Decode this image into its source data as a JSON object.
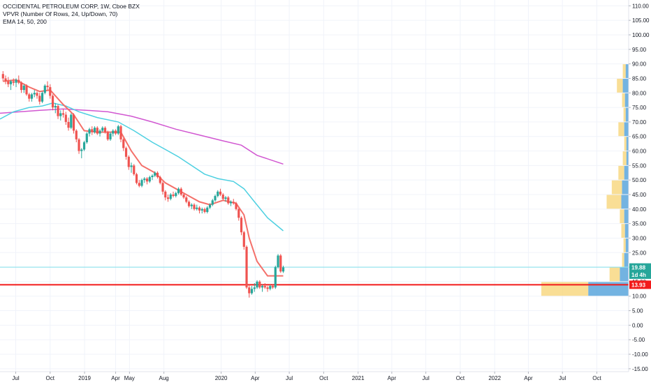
{
  "legend": {
    "symbol": "OCCIDENTAL PETROLEUM CORP, 1W, Cboe BZX",
    "vpvr": "VPVR (Number Of Rows, 24, Up/Down, 70)",
    "ema": "EMA 14, 50, 200"
  },
  "colors": {
    "up": "#26a69a",
    "down": "#ef5350",
    "ema14": "#f4706a",
    "ema50": "#4dd0e1",
    "ema200": "#d157d1",
    "hline_red": "#f21b1b",
    "hline_cyan": "#80deea",
    "vp_up": "#5aa6dc",
    "vp_down": "#f7d67a"
  },
  "chart_data": {
    "type": "candlestick",
    "ylim": [
      -16,
      112
    ],
    "yticks": [
      -15,
      -10,
      -5,
      0,
      5,
      10,
      15,
      20,
      25,
      30,
      35,
      40,
      45,
      50,
      55,
      60,
      65,
      70,
      75,
      80,
      85,
      90,
      95,
      100,
      105,
      110
    ],
    "ytick_labels": [
      "-15.00",
      "-10.00",
      "-5.00",
      "0.00",
      "5.00",
      "10.00",
      "15.00",
      "20.00",
      "25.00",
      "30.00",
      "35.00",
      "40.00",
      "45.00",
      "50.00",
      "55.00",
      "60.00",
      "65.00",
      "70.00",
      "75.00",
      "80.00",
      "85.00",
      "90.00",
      "95.00",
      "100.00",
      "105.00",
      "110.00"
    ],
    "xticks": [
      "Jul",
      "Oct",
      "2019",
      "Apr",
      "May",
      "Aug",
      "2020",
      "Apr",
      "Jul",
      "Oct",
      "2021",
      "Apr",
      "Jul",
      "Oct",
      "2022",
      "Apr",
      "Jul",
      "Oct"
    ],
    "xtick_pos": [
      "2018-07-01",
      "2018-10-01",
      "2019-01-01",
      "2019-03-25",
      "2019-05-01",
      "2019-08-01",
      "2020-01-01",
      "2020-04-01",
      "2020-07-01",
      "2020-10-01",
      "2021-01-01",
      "2021-04-01",
      "2021-07-01",
      "2021-10-01",
      "2022-01-01",
      "2022-04-01",
      "2022-07-01",
      "2022-10-01"
    ],
    "x_range": [
      "2018-05-20",
      "2022-12-25"
    ],
    "price_tags": [
      {
        "value": 19.88,
        "label": "19.88",
        "color": "#26a69a"
      },
      {
        "value": 17.4,
        "label": "1d 4h",
        "color": "#26a69a"
      },
      {
        "value": 13.93,
        "label": "13.93",
        "color": "#f21b1b"
      }
    ],
    "hlines": [
      {
        "value": 20.0,
        "color": "cyan"
      },
      {
        "value": 13.93,
        "color": "red"
      }
    ],
    "candles": [
      [
        "2018-05-28",
        86.5,
        87.5,
        84.0,
        85.0
      ],
      [
        "2018-06-04",
        85.0,
        86.0,
        83.0,
        84.0
      ],
      [
        "2018-06-11",
        84.0,
        85.5,
        82.0,
        83.0
      ],
      [
        "2018-06-18",
        83.0,
        84.5,
        81.0,
        84.0
      ],
      [
        "2018-06-25",
        84.0,
        85.0,
        82.5,
        83.5
      ],
      [
        "2018-07-02",
        83.5,
        85.0,
        82.0,
        84.5
      ],
      [
        "2018-07-09",
        84.5,
        86.0,
        83.0,
        83.5
      ],
      [
        "2018-07-16",
        83.5,
        84.0,
        80.0,
        81.0
      ],
      [
        "2018-07-23",
        81.0,
        83.0,
        80.0,
        82.5
      ],
      [
        "2018-07-30",
        82.5,
        83.0,
        79.0,
        79.5
      ],
      [
        "2018-08-06",
        79.5,
        80.0,
        77.0,
        78.0
      ],
      [
        "2018-08-13",
        78.0,
        80.0,
        77.0,
        79.5
      ],
      [
        "2018-08-20",
        79.5,
        81.0,
        78.5,
        80.0
      ],
      [
        "2018-08-27",
        80.0,
        80.5,
        78.0,
        79.0
      ],
      [
        "2018-09-03",
        79.0,
        80.0,
        76.0,
        77.0
      ],
      [
        "2018-09-10",
        77.0,
        80.5,
        76.5,
        80.0
      ],
      [
        "2018-09-17",
        80.0,
        83.0,
        79.5,
        82.5
      ],
      [
        "2018-09-24",
        82.5,
        84.0,
        81.0,
        82.0
      ],
      [
        "2018-10-01",
        82.0,
        83.0,
        78.0,
        79.0
      ],
      [
        "2018-10-08",
        79.0,
        79.5,
        74.0,
        75.0
      ],
      [
        "2018-10-15",
        75.0,
        76.5,
        73.0,
        75.5
      ],
      [
        "2018-10-22",
        75.5,
        76.0,
        71.0,
        72.0
      ],
      [
        "2018-10-29",
        72.0,
        74.0,
        70.5,
        73.0
      ],
      [
        "2018-11-05",
        73.0,
        74.5,
        71.5,
        72.5
      ],
      [
        "2018-11-12",
        72.5,
        73.5,
        69.0,
        70.0
      ],
      [
        "2018-11-19",
        70.0,
        71.5,
        67.0,
        68.0
      ],
      [
        "2018-11-26",
        68.0,
        73.0,
        67.5,
        72.5
      ],
      [
        "2018-12-03",
        72.5,
        73.0,
        66.0,
        67.0
      ],
      [
        "2018-12-10",
        67.0,
        67.5,
        63.0,
        64.0
      ],
      [
        "2018-12-17",
        64.0,
        64.5,
        59.0,
        60.0
      ],
      [
        "2018-12-24",
        60.0,
        61.0,
        57.5,
        60.5
      ],
      [
        "2018-12-31",
        60.5,
        63.5,
        60.0,
        63.0
      ],
      [
        "2019-01-07",
        63.0,
        66.5,
        62.5,
        66.0
      ],
      [
        "2019-01-14",
        66.0,
        68.0,
        65.0,
        67.5
      ],
      [
        "2019-01-21",
        67.5,
        68.5,
        65.5,
        66.5
      ],
      [
        "2019-01-28",
        66.5,
        68.5,
        66.0,
        68.0
      ],
      [
        "2019-02-04",
        68.0,
        68.5,
        65.5,
        66.0
      ],
      [
        "2019-02-11",
        66.0,
        67.5,
        65.0,
        67.0
      ],
      [
        "2019-02-18",
        67.0,
        68.5,
        66.5,
        68.0
      ],
      [
        "2019-02-25",
        68.0,
        68.5,
        66.0,
        66.5
      ],
      [
        "2019-03-04",
        66.5,
        67.0,
        63.5,
        64.0
      ],
      [
        "2019-03-11",
        64.0,
        66.5,
        63.5,
        66.0
      ],
      [
        "2019-03-18",
        66.0,
        67.5,
        65.0,
        67.0
      ],
      [
        "2019-03-25",
        67.0,
        67.5,
        65.5,
        66.0
      ],
      [
        "2019-04-01",
        66.0,
        69.0,
        65.5,
        68.5
      ],
      [
        "2019-04-08",
        68.5,
        69.0,
        63.0,
        64.0
      ],
      [
        "2019-04-15",
        64.0,
        64.5,
        60.0,
        61.0
      ],
      [
        "2019-04-22",
        61.0,
        61.5,
        57.0,
        58.0
      ],
      [
        "2019-04-29",
        58.0,
        58.5,
        53.5,
        54.5
      ],
      [
        "2019-05-06",
        54.5,
        56.0,
        52.5,
        55.0
      ],
      [
        "2019-05-13",
        55.0,
        55.5,
        51.5,
        52.0
      ],
      [
        "2019-05-20",
        52.0,
        52.5,
        48.5,
        49.0
      ],
      [
        "2019-05-27",
        49.0,
        50.0,
        47.5,
        48.0
      ],
      [
        "2019-06-03",
        48.0,
        50.5,
        47.5,
        50.0
      ],
      [
        "2019-06-10",
        50.0,
        51.0,
        49.0,
        50.5
      ],
      [
        "2019-06-17",
        50.5,
        51.0,
        48.5,
        49.5
      ],
      [
        "2019-06-24",
        49.5,
        51.5,
        49.0,
        51.0
      ],
      [
        "2019-07-01",
        51.0,
        52.0,
        50.0,
        51.5
      ],
      [
        "2019-07-08",
        51.5,
        53.0,
        51.0,
        52.5
      ],
      [
        "2019-07-15",
        52.5,
        53.0,
        50.5,
        51.0
      ],
      [
        "2019-07-22",
        51.0,
        51.5,
        48.5,
        49.0
      ],
      [
        "2019-07-29",
        49.0,
        49.5,
        45.0,
        46.0
      ],
      [
        "2019-08-05",
        46.0,
        46.5,
        43.0,
        44.0
      ],
      [
        "2019-08-12",
        44.0,
        45.0,
        42.5,
        43.5
      ],
      [
        "2019-08-19",
        43.5,
        45.5,
        43.0,
        45.0
      ],
      [
        "2019-08-26",
        45.0,
        46.0,
        44.0,
        44.5
      ],
      [
        "2019-09-02",
        44.5,
        46.0,
        44.0,
        45.5
      ],
      [
        "2019-09-09",
        45.5,
        47.5,
        45.0,
        47.0
      ],
      [
        "2019-09-16",
        47.0,
        47.5,
        44.5,
        45.0
      ],
      [
        "2019-09-23",
        45.0,
        45.5,
        43.5,
        44.0
      ],
      [
        "2019-09-30",
        44.0,
        44.5,
        42.0,
        42.5
      ],
      [
        "2019-10-07",
        42.5,
        43.0,
        40.5,
        41.0
      ],
      [
        "2019-10-14",
        41.0,
        42.0,
        40.0,
        41.5
      ],
      [
        "2019-10-21",
        41.5,
        42.0,
        39.5,
        40.0
      ],
      [
        "2019-10-28",
        40.0,
        41.5,
        39.5,
        40.5
      ],
      [
        "2019-11-04",
        40.5,
        41.0,
        38.5,
        39.5
      ],
      [
        "2019-11-11",
        39.5,
        40.5,
        38.5,
        40.0
      ],
      [
        "2019-11-18",
        40.0,
        40.5,
        38.5,
        39.0
      ],
      [
        "2019-11-25",
        39.0,
        41.0,
        38.5,
        40.5
      ],
      [
        "2019-12-02",
        40.5,
        42.0,
        40.0,
        41.5
      ],
      [
        "2019-12-09",
        41.5,
        43.5,
        41.0,
        43.0
      ],
      [
        "2019-12-16",
        43.0,
        45.0,
        42.5,
        44.5
      ],
      [
        "2019-12-23",
        44.5,
        46.5,
        44.0,
        46.0
      ],
      [
        "2019-12-30",
        46.0,
        47.0,
        44.5,
        45.0
      ],
      [
        "2020-01-06",
        45.0,
        45.5,
        43.0,
        43.5
      ],
      [
        "2020-01-13",
        43.5,
        44.5,
        42.5,
        44.0
      ],
      [
        "2020-01-20",
        44.0,
        44.5,
        41.5,
        42.0
      ],
      [
        "2020-01-27",
        42.0,
        43.0,
        41.0,
        42.5
      ],
      [
        "2020-02-03",
        42.5,
        43.5,
        41.5,
        42.0
      ],
      [
        "2020-02-10",
        42.0,
        42.5,
        39.5,
        40.0
      ],
      [
        "2020-02-17",
        40.0,
        40.5,
        36.0,
        37.0
      ],
      [
        "2020-02-24",
        37.0,
        37.5,
        31.0,
        32.0
      ],
      [
        "2020-03-02",
        32.0,
        32.5,
        26.0,
        27.0
      ],
      [
        "2020-03-09",
        27.0,
        27.5,
        12.5,
        13.0
      ],
      [
        "2020-03-16",
        13.0,
        14.0,
        9.5,
        11.0
      ],
      [
        "2020-03-23",
        11.0,
        13.5,
        10.5,
        12.5
      ],
      [
        "2020-03-30",
        12.5,
        14.5,
        11.5,
        13.0
      ],
      [
        "2020-04-06",
        13.0,
        15.5,
        12.5,
        15.0
      ],
      [
        "2020-04-13",
        15.0,
        15.5,
        12.5,
        13.0
      ],
      [
        "2020-04-20",
        13.0,
        14.0,
        11.5,
        13.5
      ],
      [
        "2020-04-27",
        13.5,
        14.5,
        12.5,
        13.0
      ],
      [
        "2020-05-04",
        13.0,
        13.5,
        11.5,
        12.5
      ],
      [
        "2020-05-11",
        12.5,
        14.0,
        12.0,
        13.5
      ],
      [
        "2020-05-18",
        13.5,
        14.0,
        12.5,
        13.0
      ],
      [
        "2020-05-25",
        13.0,
        20.5,
        12.5,
        20.0
      ],
      [
        "2020-06-01",
        20.0,
        24.5,
        19.5,
        24.0
      ],
      [
        "2020-06-08",
        24.0,
        24.5,
        18.0,
        18.5
      ],
      [
        "2020-06-15",
        18.5,
        20.5,
        18.0,
        19.9
      ]
    ],
    "ema14": [
      [
        "2018-05-28",
        84.0
      ],
      [
        "2018-07-02",
        84.5
      ],
      [
        "2018-08-06",
        82.0
      ],
      [
        "2018-09-03",
        80.5
      ],
      [
        "2018-10-01",
        81.0
      ],
      [
        "2018-11-05",
        76.0
      ],
      [
        "2018-12-03",
        72.5
      ],
      [
        "2018-12-31",
        67.0
      ],
      [
        "2019-02-04",
        66.5
      ],
      [
        "2019-03-04",
        66.5
      ],
      [
        "2019-04-08",
        66.5
      ],
      [
        "2019-05-06",
        60.0
      ],
      [
        "2019-06-03",
        55.0
      ],
      [
        "2019-07-08",
        52.5
      ],
      [
        "2019-08-05",
        49.0
      ],
      [
        "2019-09-09",
        46.5
      ],
      [
        "2019-10-07",
        44.5
      ],
      [
        "2019-11-04",
        42.5
      ],
      [
        "2019-12-02",
        41.5
      ],
      [
        "2020-01-06",
        43.0
      ],
      [
        "2020-02-10",
        42.0
      ],
      [
        "2020-03-02",
        38.0
      ],
      [
        "2020-03-16",
        30.0
      ],
      [
        "2020-04-06",
        22.0
      ],
      [
        "2020-05-04",
        17.0
      ],
      [
        "2020-06-15",
        17.0
      ]
    ],
    "ema50": [
      [
        "2018-05-20",
        71.0
      ],
      [
        "2018-06-25",
        73.5
      ],
      [
        "2018-08-06",
        75.0
      ],
      [
        "2018-09-10",
        75.5
      ],
      [
        "2018-10-08",
        76.5
      ],
      [
        "2018-11-12",
        75.5
      ],
      [
        "2018-12-17",
        73.5
      ],
      [
        "2019-02-04",
        71.5
      ],
      [
        "2019-04-01",
        70.0
      ],
      [
        "2019-05-13",
        67.0
      ],
      [
        "2019-07-01",
        63.0
      ],
      [
        "2019-08-05",
        60.5
      ],
      [
        "2019-09-09",
        58.0
      ],
      [
        "2019-10-14",
        55.0
      ],
      [
        "2019-11-18",
        52.0
      ],
      [
        "2019-12-23",
        50.5
      ],
      [
        "2020-02-03",
        49.5
      ],
      [
        "2020-03-02",
        47.0
      ],
      [
        "2020-03-30",
        42.5
      ],
      [
        "2020-05-04",
        37.0
      ],
      [
        "2020-06-15",
        32.5
      ]
    ],
    "ema200": [
      [
        "2018-05-20",
        73.0
      ],
      [
        "2018-09-03",
        74.0
      ],
      [
        "2018-11-05",
        74.5
      ],
      [
        "2019-01-07",
        74.0
      ],
      [
        "2019-03-04",
        73.5
      ],
      [
        "2019-05-06",
        72.0
      ],
      [
        "2019-07-01",
        70.0
      ],
      [
        "2019-09-02",
        67.5
      ],
      [
        "2019-11-04",
        65.5
      ],
      [
        "2020-01-06",
        63.5
      ],
      [
        "2020-02-24",
        62.0
      ],
      [
        "2020-04-06",
        58.5
      ],
      [
        "2020-06-15",
        55.5
      ]
    ],
    "vpvr": [
      {
        "price": 12.5,
        "up": 55,
        "down": 64
      },
      {
        "price": 17.5,
        "up": 12,
        "down": 14
      },
      {
        "price": 22.5,
        "up": 6,
        "down": 3
      },
      {
        "price": 27.5,
        "up": 4,
        "down": 3
      },
      {
        "price": 32.5,
        "up": 5,
        "down": 5
      },
      {
        "price": 37.5,
        "up": 6,
        "down": 6
      },
      {
        "price": 42.5,
        "up": 10,
        "down": 20
      },
      {
        "price": 47.5,
        "up": 9,
        "down": 14
      },
      {
        "price": 52.5,
        "up": 6,
        "down": 8
      },
      {
        "price": 57.5,
        "up": 3,
        "down": 5
      },
      {
        "price": 62.5,
        "up": 3,
        "down": 3
      },
      {
        "price": 67.5,
        "up": 6,
        "down": 8
      },
      {
        "price": 72.5,
        "up": 4,
        "down": 3
      },
      {
        "price": 77.5,
        "up": 5,
        "down": 4
      },
      {
        "price": 82.5,
        "up": 8,
        "down": 8
      },
      {
        "price": 87.5,
        "up": 4,
        "down": 4
      }
    ]
  }
}
